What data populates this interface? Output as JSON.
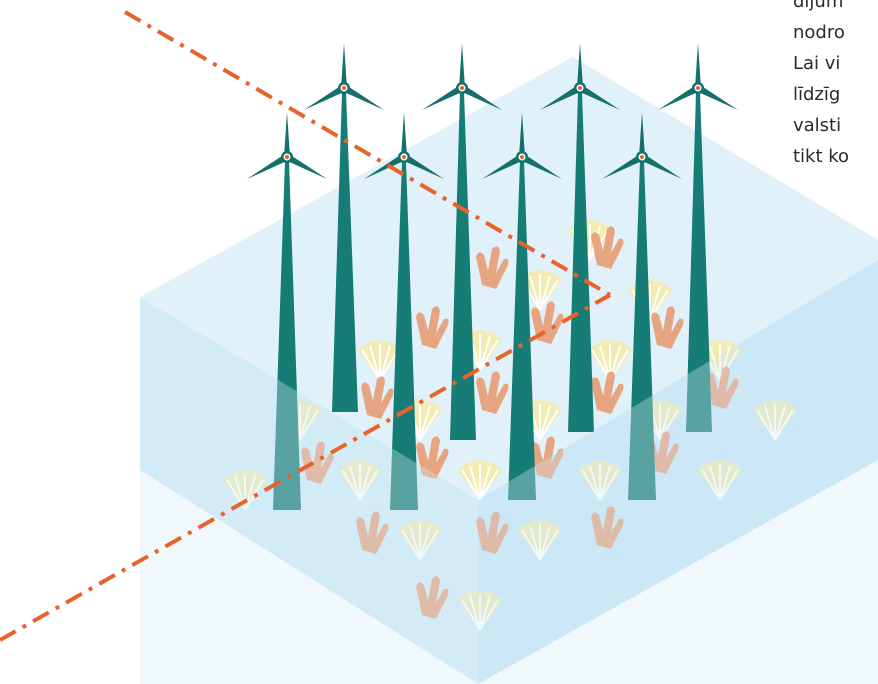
{
  "text_lines": [
    "dijum",
    "nodro",
    "Lai vi",
    "līdzīg",
    "valsti",
    "tikt ko"
  ]
}
